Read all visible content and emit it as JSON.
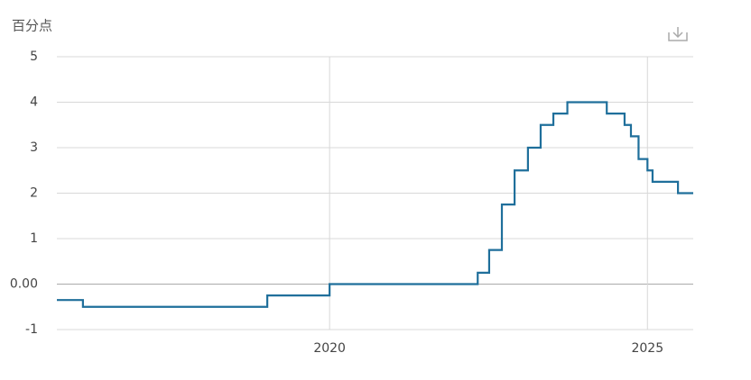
{
  "chart_data": {
    "type": "line",
    "step": "post",
    "y_label": "百分点",
    "series": [
      {
        "color": "#1f6f9b",
        "x": [
          2015.71,
          2016.12,
          2019.02,
          2020.0,
          2022.33,
          2022.51,
          2022.71,
          2022.91,
          2023.12,
          2023.32,
          2023.52,
          2023.74,
          2024.36,
          2024.64,
          2024.74,
          2024.86,
          2025.0,
          2025.08,
          2025.48,
          2025.72
        ],
        "values": [
          -0.35,
          -0.5,
          -0.25,
          0,
          0.25,
          0.75,
          1.75,
          2.5,
          3.0,
          3.5,
          3.75,
          4.0,
          3.75,
          3.5,
          3.25,
          2.75,
          2.5,
          2.25,
          2.0,
          2.0
        ]
      }
    ],
    "xlim": [
      2015.71,
      2025.72
    ],
    "xticks": [
      2020,
      2025
    ],
    "ylim": [
      -1,
      5
    ],
    "yticks": [
      5,
      4,
      3,
      2,
      1,
      {
        "value": 0,
        "label": "0.00"
      },
      -1
    ],
    "grid": true
  }
}
